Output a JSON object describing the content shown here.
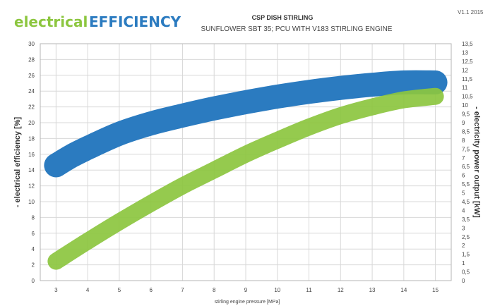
{
  "header": {
    "brand_light": "electrical",
    "brand_bold": "EFFICIENCY",
    "title": "CSP DISH STIRLING",
    "subtitle": "SUNFLOWER SBT 35; PCU WITH V183 STIRLING ENGINE",
    "version": "V1.1 2015"
  },
  "colors": {
    "efficiency": "#2b7bc0",
    "power": "#8cc63f"
  },
  "chart_data": {
    "type": "line",
    "xlabel": "stirling engine pressure [MPa]",
    "ylabel_left": "- electrical efficiency [%]",
    "ylabel_right": "- electricity power output [kW]",
    "x_ticks": [
      3,
      4,
      5,
      6,
      7,
      8,
      9,
      10,
      11,
      12,
      13,
      14,
      15
    ],
    "xlim": [
      2.5,
      15.5
    ],
    "ylim_left": [
      0,
      30
    ],
    "y_ticks_left": [
      0,
      2,
      4,
      6,
      8,
      10,
      12,
      14,
      16,
      18,
      20,
      22,
      24,
      26,
      28,
      30
    ],
    "ylim_right": [
      0,
      13.5
    ],
    "y_ticks_right": [
      "0",
      "0,5",
      "1",
      "1,5",
      "2",
      "2,5",
      "3",
      "3,5",
      "4",
      "4,5",
      "5",
      "5,5",
      "6",
      "6,5",
      "7",
      "7,5",
      "8",
      "8,5",
      "9",
      "9,5",
      "10",
      "10,5",
      "11",
      "11,5",
      "12",
      "12,5",
      "13",
      "13,5"
    ],
    "series": [
      {
        "name": "",
        "axis": "left",
        "color": "#2b7bc0",
        "x": [
          3,
          3.5,
          4,
          5,
          6,
          7,
          8,
          9,
          10,
          11,
          12,
          13,
          14,
          15
        ],
        "y": [
          14.6,
          15.8,
          16.8,
          18.6,
          19.9,
          20.9,
          21.8,
          22.6,
          23.3,
          23.9,
          24.4,
          24.8,
          25.1,
          25.1
        ]
      },
      {
        "name": "",
        "axis": "right",
        "color": "#8cc63f",
        "x": [
          3,
          4,
          5,
          6,
          7,
          8,
          9,
          10,
          11,
          12,
          13,
          14,
          15
        ],
        "y": [
          1.1,
          2.25,
          3.35,
          4.4,
          5.4,
          6.3,
          7.2,
          8.0,
          8.75,
          9.4,
          9.9,
          10.3,
          10.5
        ]
      }
    ]
  }
}
